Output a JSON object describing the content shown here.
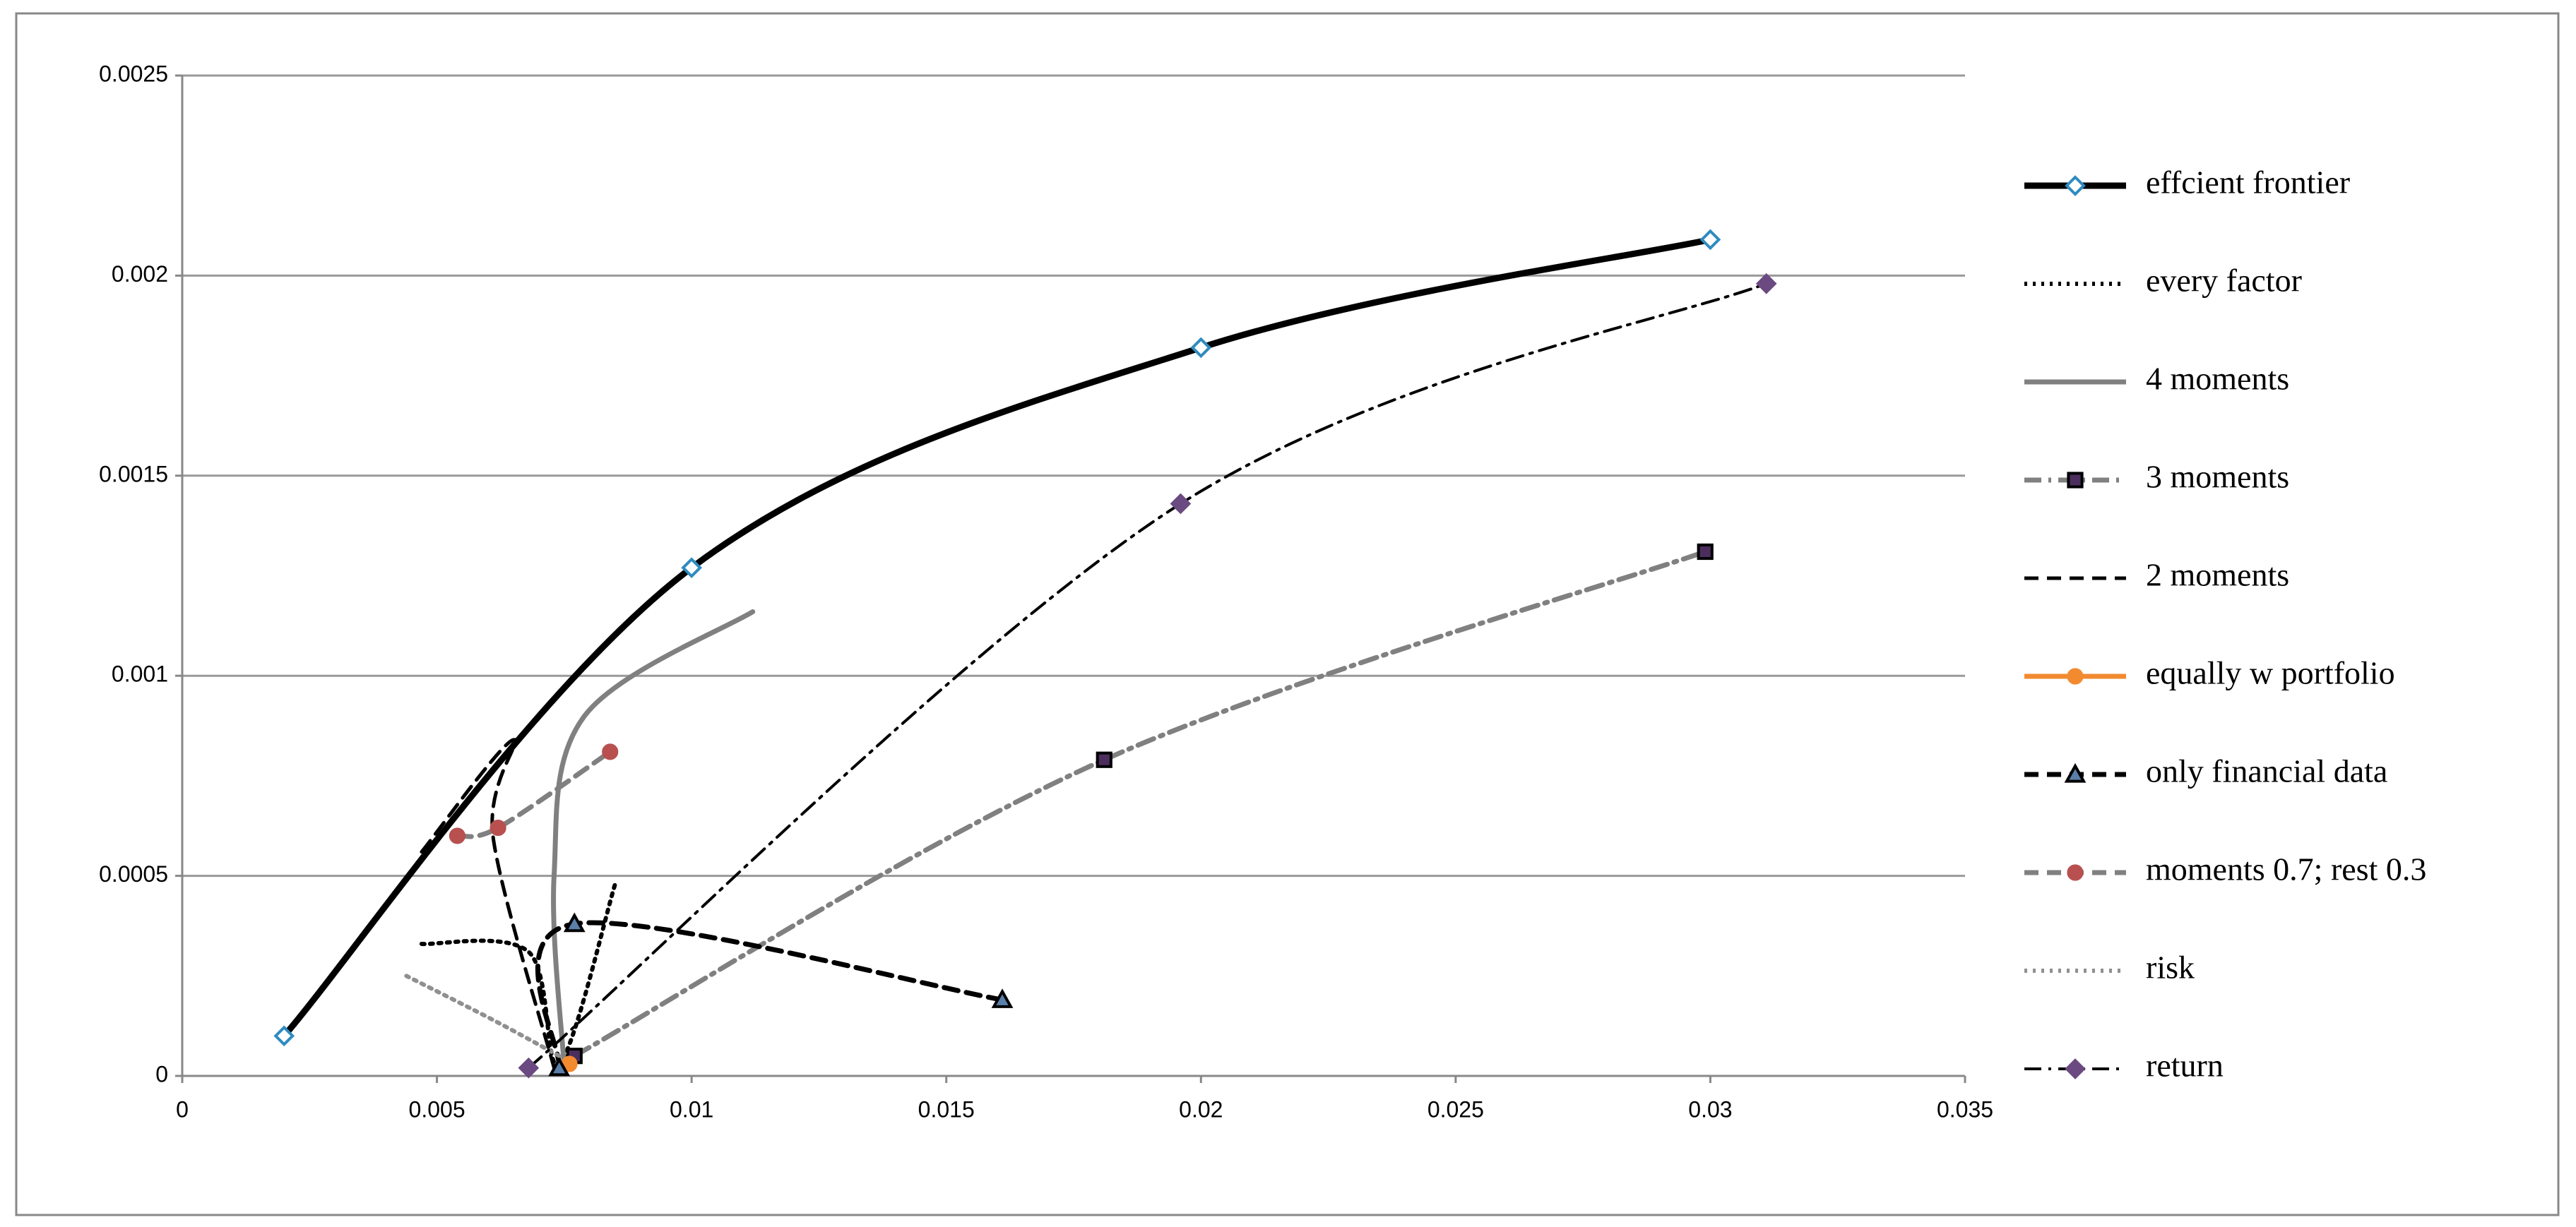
{
  "chart_data": {
    "type": "scatter",
    "xlim": [
      0,
      0.035
    ],
    "xticks": [
      0,
      0.005,
      0.01,
      0.015,
      0.02,
      0.025,
      0.03,
      0.035
    ],
    "ylim": [
      0,
      0.0025
    ],
    "yticks": [
      0,
      0.0005,
      0.001,
      0.0015,
      0.002,
      0.0025
    ],
    "grid": true,
    "legend": "right",
    "series": [
      {
        "name": "effcient frontier",
        "color": "#000000",
        "dash": "solid",
        "marker": "diamond",
        "marker_color": "#2e8bc0",
        "x": [
          0.002,
          0.01,
          0.02,
          0.03
        ],
        "values": [
          0.0001,
          0.00127,
          0.00182,
          0.00209
        ]
      },
      {
        "name": "every factor",
        "color": "#000000",
        "dash": "dot",
        "marker": "none",
        "marker_color": "#000000",
        "x": [
          0.0047,
          0.0068,
          0.0074,
          0.0085
        ],
        "values": [
          0.00033,
          0.00031,
          3e-05,
          0.00048
        ]
      },
      {
        "name": "4 moments",
        "color": "#808080",
        "dash": "solid",
        "marker": "none",
        "marker_color": "#808080",
        "x": [
          0.0075,
          0.0073,
          0.0079,
          0.0112
        ],
        "values": [
          2e-05,
          0.0005,
          0.0009,
          0.00116
        ]
      },
      {
        "name": "3 moments",
        "color": "#808080",
        "dash": "dashdot",
        "marker": "square",
        "marker_color": "#4b2d5e",
        "x": [
          0.0077,
          0.0181,
          0.0299
        ],
        "values": [
          5e-05,
          0.00079,
          0.00131
        ]
      },
      {
        "name": "2 moments",
        "color": "#000000",
        "dash": "dash",
        "marker": "none",
        "marker_color": "#000000",
        "x": [
          0.0047,
          0.0065,
          0.0061,
          0.0073
        ],
        "values": [
          0.00056,
          0.00084,
          0.0006,
          2e-05
        ]
      },
      {
        "name": "equally w portfolio",
        "color": "#f28a30",
        "dash": "solid",
        "marker": "circle",
        "marker_color": "#f28a30",
        "x": [
          0.0076
        ],
        "values": [
          3e-05
        ]
      },
      {
        "name": "only financial data",
        "color": "#000000",
        "dash": "dash",
        "marker": "triangle",
        "marker_color": "#5a7fa8",
        "x": [
          0.0074,
          0.0077,
          0.0161
        ],
        "values": [
          2e-05,
          0.00038,
          0.00019
        ]
      },
      {
        "name": "moments 0.7; rest 0.3",
        "color": "#808080",
        "dash": "dash",
        "marker": "circle",
        "marker_color": "#b85050",
        "x": [
          0.0054,
          0.0062,
          0.0084
        ],
        "values": [
          0.0006,
          0.00062,
          0.00081
        ]
      },
      {
        "name": "risk",
        "color": "#909090",
        "dash": "dot",
        "marker": "none",
        "marker_color": "#909090",
        "x": [
          0.0044,
          0.0061,
          0.0074
        ],
        "values": [
          0.00025,
          0.00014,
          5e-05
        ]
      },
      {
        "name": "return",
        "color": "#000000",
        "dash": "dashdot",
        "marker": "diamond",
        "marker_color": "#6a4a80",
        "x": [
          0.0068,
          0.0196,
          0.0311
        ],
        "values": [
          2e-05,
          0.00143,
          0.00198
        ]
      }
    ]
  }
}
